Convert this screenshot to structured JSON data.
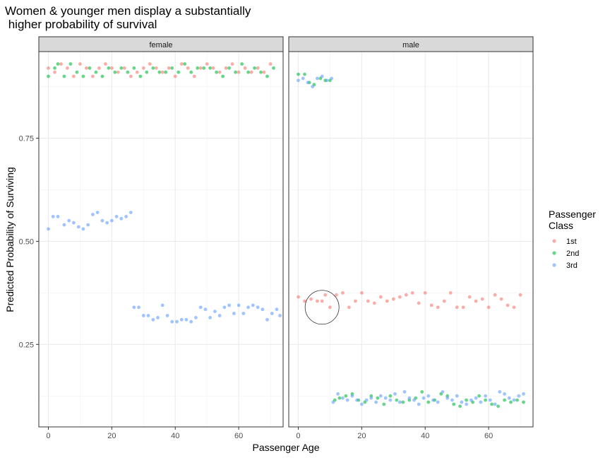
{
  "chart_data": {
    "type": "scatter",
    "title": [
      "Women & younger men display a substantially",
      " higher probability of survival"
    ],
    "xlabel": "Passenger Age",
    "ylabel": "Predicted Probability of Surviving",
    "xlim": [
      -3,
      74
    ],
    "ylim": [
      0.05,
      0.96
    ],
    "x_ticks": [
      0,
      20,
      40,
      60
    ],
    "y_ticks": [
      0.25,
      0.5,
      0.75
    ],
    "y_tick_labels": [
      "0.25",
      "0.50",
      "0.75"
    ],
    "grid": true,
    "facets": [
      "female",
      "male"
    ],
    "legend": {
      "title": [
        "Passenger",
        "Class"
      ],
      "position": "right",
      "entries": [
        {
          "label": "1st",
          "color": "#F8766D"
        },
        {
          "label": "2nd",
          "color": "#00BA38"
        },
        {
          "label": "3rd",
          "color": "#619CFF"
        }
      ]
    },
    "annotation": {
      "facet": "male",
      "type": "circle",
      "x": 7.5,
      "y": 0.34
    },
    "series": [
      {
        "facet": "female",
        "class": "1st",
        "points": [
          [
            0,
            0.92
          ],
          [
            2,
            0.91
          ],
          [
            4,
            0.93
          ],
          [
            6,
            0.92
          ],
          [
            8,
            0.9
          ],
          [
            10,
            0.93
          ],
          [
            12,
            0.92
          ],
          [
            14,
            0.9
          ],
          [
            16,
            0.92
          ],
          [
            18,
            0.93
          ],
          [
            20,
            0.92
          ],
          [
            22,
            0.91
          ],
          [
            24,
            0.92
          ],
          [
            26,
            0.9
          ],
          [
            28,
            0.91
          ],
          [
            30,
            0.92
          ],
          [
            32,
            0.93
          ],
          [
            34,
            0.92
          ],
          [
            36,
            0.91
          ],
          [
            38,
            0.92
          ],
          [
            40,
            0.9
          ],
          [
            42,
            0.93
          ],
          [
            44,
            0.92
          ],
          [
            46,
            0.9
          ],
          [
            48,
            0.92
          ],
          [
            50,
            0.93
          ],
          [
            52,
            0.92
          ],
          [
            54,
            0.91
          ],
          [
            56,
            0.92
          ],
          [
            58,
            0.93
          ],
          [
            60,
            0.91
          ],
          [
            62,
            0.92
          ],
          [
            64,
            0.91
          ],
          [
            66,
            0.92
          ],
          [
            68,
            0.91
          ],
          [
            70,
            0.93
          ]
        ]
      },
      {
        "facet": "female",
        "class": "2nd",
        "points": [
          [
            0,
            0.9
          ],
          [
            2,
            0.92
          ],
          [
            3,
            0.93
          ],
          [
            5,
            0.9
          ],
          [
            7,
            0.93
          ],
          [
            9,
            0.91
          ],
          [
            11,
            0.9
          ],
          [
            13,
            0.92
          ],
          [
            15,
            0.91
          ],
          [
            17,
            0.9
          ],
          [
            19,
            0.92
          ],
          [
            21,
            0.91
          ],
          [
            23,
            0.92
          ],
          [
            25,
            0.91
          ],
          [
            27,
            0.92
          ],
          [
            29,
            0.9
          ],
          [
            31,
            0.91
          ],
          [
            33,
            0.92
          ],
          [
            35,
            0.91
          ],
          [
            37,
            0.91
          ],
          [
            39,
            0.92
          ],
          [
            41,
            0.91
          ],
          [
            43,
            0.93
          ],
          [
            45,
            0.91
          ],
          [
            47,
            0.92
          ],
          [
            49,
            0.92
          ],
          [
            51,
            0.92
          ],
          [
            53,
            0.91
          ],
          [
            55,
            0.9
          ],
          [
            57,
            0.92
          ],
          [
            59,
            0.91
          ],
          [
            61,
            0.93
          ],
          [
            63,
            0.91
          ],
          [
            65,
            0.92
          ],
          [
            67,
            0.91
          ],
          [
            69,
            0.9
          ],
          [
            71,
            0.92
          ]
        ]
      },
      {
        "facet": "female",
        "class": "3rd",
        "points": [
          [
            0,
            0.53
          ],
          [
            1.5,
            0.56
          ],
          [
            3,
            0.56
          ],
          [
            5,
            0.54
          ],
          [
            6.5,
            0.55
          ],
          [
            8,
            0.545
          ],
          [
            9.5,
            0.535
          ],
          [
            11,
            0.53
          ],
          [
            12.5,
            0.54
          ],
          [
            14,
            0.565
          ],
          [
            15.5,
            0.57
          ],
          [
            17,
            0.55
          ],
          [
            18.5,
            0.545
          ],
          [
            20,
            0.55
          ],
          [
            21.5,
            0.56
          ],
          [
            23,
            0.555
          ],
          [
            24.5,
            0.56
          ],
          [
            26,
            0.57
          ],
          [
            27,
            0.34
          ],
          [
            28.5,
            0.34
          ],
          [
            30,
            0.32
          ],
          [
            31.5,
            0.32
          ],
          [
            33,
            0.31
          ],
          [
            34.5,
            0.315
          ],
          [
            36,
            0.345
          ],
          [
            37.5,
            0.32
          ],
          [
            39,
            0.305
          ],
          [
            40.5,
            0.305
          ],
          [
            42,
            0.31
          ],
          [
            43.5,
            0.31
          ],
          [
            45,
            0.305
          ],
          [
            46.5,
            0.315
          ],
          [
            48,
            0.34
          ],
          [
            49.5,
            0.335
          ],
          [
            51,
            0.315
          ],
          [
            52.5,
            0.33
          ],
          [
            54,
            0.32
          ],
          [
            55.5,
            0.34
          ],
          [
            57,
            0.345
          ],
          [
            58.5,
            0.325
          ],
          [
            60,
            0.345
          ],
          [
            61.5,
            0.325
          ],
          [
            63,
            0.34
          ],
          [
            64.5,
            0.345
          ],
          [
            66,
            0.34
          ],
          [
            67.5,
            0.335
          ],
          [
            69,
            0.31
          ],
          [
            70.5,
            0.325
          ],
          [
            72,
            0.335
          ],
          [
            73,
            0.32
          ]
        ]
      },
      {
        "facet": "male",
        "class": "1st",
        "points": [
          [
            0,
            0.365
          ],
          [
            2,
            0.355
          ],
          [
            4,
            0.36
          ],
          [
            6,
            0.355
          ],
          [
            7.5,
            0.355
          ],
          [
            8.5,
            0.37
          ],
          [
            10,
            0.34
          ],
          [
            12,
            0.37
          ],
          [
            14,
            0.375
          ],
          [
            16,
            0.34
          ],
          [
            18,
            0.355
          ],
          [
            20,
            0.375
          ],
          [
            22,
            0.355
          ],
          [
            24,
            0.35
          ],
          [
            26,
            0.365
          ],
          [
            28,
            0.355
          ],
          [
            30,
            0.36
          ],
          [
            32,
            0.365
          ],
          [
            34,
            0.37
          ],
          [
            36,
            0.375
          ],
          [
            38,
            0.35
          ],
          [
            40,
            0.375
          ],
          [
            42,
            0.345
          ],
          [
            44,
            0.34
          ],
          [
            46,
            0.355
          ],
          [
            48,
            0.375
          ],
          [
            50,
            0.34
          ],
          [
            52,
            0.34
          ],
          [
            54,
            0.365
          ],
          [
            56,
            0.355
          ],
          [
            58,
            0.36
          ],
          [
            60,
            0.34
          ],
          [
            62,
            0.37
          ],
          [
            64,
            0.36
          ],
          [
            66,
            0.345
          ],
          [
            68,
            0.34
          ],
          [
            70,
            0.37
          ]
        ]
      },
      {
        "facet": "male",
        "class": "2nd",
        "points": [
          [
            0,
            0.905
          ],
          [
            2,
            0.905
          ],
          [
            3.5,
            0.885
          ],
          [
            5,
            0.88
          ],
          [
            7,
            0.895
          ],
          [
            8.5,
            0.89
          ],
          [
            10,
            0.89
          ],
          [
            11.5,
            0.115
          ],
          [
            13,
            0.12
          ],
          [
            15,
            0.125
          ],
          [
            17,
            0.13
          ],
          [
            19,
            0.115
          ],
          [
            21,
            0.11
          ],
          [
            23,
            0.125
          ],
          [
            25,
            0.12
          ],
          [
            27,
            0.105
          ],
          [
            29,
            0.125
          ],
          [
            31,
            0.115
          ],
          [
            33,
            0.11
          ],
          [
            35,
            0.115
          ],
          [
            37,
            0.12
          ],
          [
            39,
            0.135
          ],
          [
            41,
            0.11
          ],
          [
            43,
            0.115
          ],
          [
            45,
            0.13
          ],
          [
            47,
            0.125
          ],
          [
            49,
            0.105
          ],
          [
            51,
            0.1
          ],
          [
            53,
            0.115
          ],
          [
            55,
            0.11
          ],
          [
            57,
            0.125
          ],
          [
            59,
            0.115
          ],
          [
            61,
            0.105
          ],
          [
            63,
            0.1
          ],
          [
            65,
            0.115
          ],
          [
            67,
            0.11
          ],
          [
            69,
            0.115
          ],
          [
            71,
            0.11
          ]
        ]
      },
      {
        "facet": "male",
        "class": "3rd",
        "points": [
          [
            0,
            0.89
          ],
          [
            1.5,
            0.895
          ],
          [
            3,
            0.885
          ],
          [
            4.5,
            0.875
          ],
          [
            6,
            0.895
          ],
          [
            7.5,
            0.9
          ],
          [
            9,
            0.89
          ],
          [
            10.5,
            0.895
          ],
          [
            11,
            0.11
          ],
          [
            12.5,
            0.13
          ],
          [
            14,
            0.12
          ],
          [
            15.5,
            0.115
          ],
          [
            17,
            0.125
          ],
          [
            18.5,
            0.115
          ],
          [
            20,
            0.105
          ],
          [
            21.5,
            0.115
          ],
          [
            23,
            0.12
          ],
          [
            24.5,
            0.11
          ],
          [
            26,
            0.125
          ],
          [
            27.5,
            0.12
          ],
          [
            29,
            0.115
          ],
          [
            30.5,
            0.13
          ],
          [
            32,
            0.11
          ],
          [
            33.5,
            0.135
          ],
          [
            35,
            0.12
          ],
          [
            36.5,
            0.115
          ],
          [
            38,
            0.105
          ],
          [
            39.5,
            0.12
          ],
          [
            41,
            0.125
          ],
          [
            42.5,
            0.115
          ],
          [
            44,
            0.11
          ],
          [
            45.5,
            0.135
          ],
          [
            47,
            0.12
          ],
          [
            48.5,
            0.115
          ],
          [
            50,
            0.125
          ],
          [
            51.5,
            0.11
          ],
          [
            53,
            0.105
          ],
          [
            54.5,
            0.115
          ],
          [
            56,
            0.12
          ],
          [
            57.5,
            0.11
          ],
          [
            59,
            0.125
          ],
          [
            60.5,
            0.115
          ],
          [
            62,
            0.105
          ],
          [
            63.5,
            0.135
          ],
          [
            65,
            0.13
          ],
          [
            66.5,
            0.12
          ],
          [
            68,
            0.115
          ],
          [
            69.5,
            0.125
          ],
          [
            71,
            0.13
          ]
        ]
      }
    ]
  }
}
